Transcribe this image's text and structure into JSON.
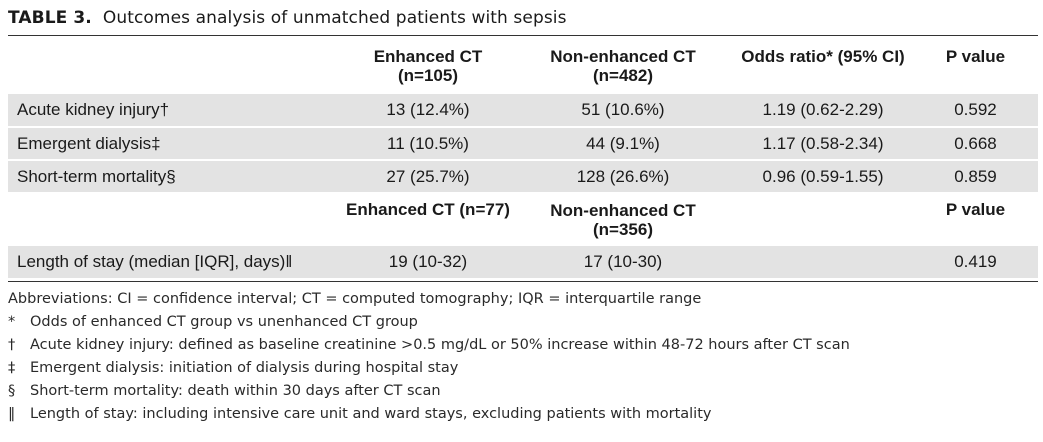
{
  "title": {
    "label": "TABLE 3.",
    "text": "Outcomes analysis of unmatched patients with sepsis"
  },
  "header1": {
    "enhanced": "Enhanced CT",
    "enhanced_n": "(n=105)",
    "nonenhanced": "Non-enhanced CT",
    "nonenhanced_n": "(n=482)",
    "odds_ratio": "Odds ratio* (95% CI)",
    "p_value": "P value"
  },
  "rows": [
    {
      "label": "Acute kidney injury†",
      "enhanced": "13 (12.4%)",
      "nonenhanced": "51 (10.6%)",
      "odds_ratio": "1.19 (0.62-2.29)",
      "p_value": "0.592"
    },
    {
      "label": "Emergent dialysis‡",
      "enhanced": "11 (10.5%)",
      "nonenhanced": "44 (9.1%)",
      "odds_ratio": "1.17 (0.58-2.34)",
      "p_value": "0.668"
    },
    {
      "label": "Short-term mortality§",
      "enhanced": "27 (25.7%)",
      "nonenhanced": "128 (26.6%)",
      "odds_ratio": "0.96 (0.59-1.55)",
      "p_value": "0.859"
    }
  ],
  "header2": {
    "enhanced": "Enhanced CT (n=77)",
    "nonenhanced": "Non-enhanced CT",
    "nonenhanced_n": "(n=356)",
    "p_value": "P value"
  },
  "los_row": {
    "label": "Length of stay (median [IQR], days)‖",
    "enhanced": "19 (10-32)",
    "nonenhanced": "17 (10-30)",
    "p_value": "0.419"
  },
  "footnotes": {
    "abbreviations": "Abbreviations: CI = confidence interval; CT = computed tomography; IQR = interquartile range",
    "notes": [
      {
        "symbol": "*",
        "text": "Odds of enhanced CT group vs unenhanced CT group"
      },
      {
        "symbol": "†",
        "text": "Acute kidney injury: defined as baseline creatinine >0.5 mg/dL or 50% increase within 48-72 hours after CT scan"
      },
      {
        "symbol": "‡",
        "text": "Emergent dialysis: initiation of dialysis during hospital stay"
      },
      {
        "symbol": "§",
        "text": "Short-term mortality: death within 30 days after CT scan"
      },
      {
        "symbol": "‖",
        "text": "Length of stay: including intensive care unit and ward stays, excluding patients with mortality"
      }
    ]
  }
}
